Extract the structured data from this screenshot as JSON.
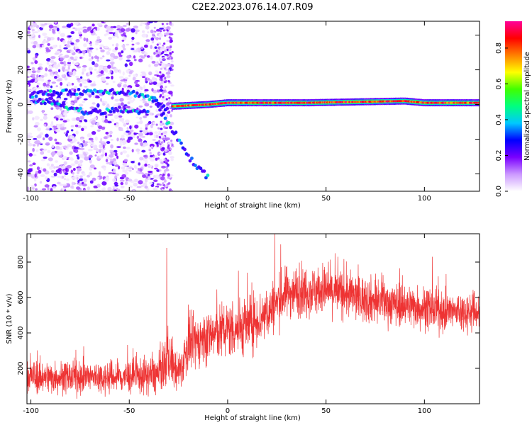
{
  "figure_title": "C2E2.2023.076.14.07.R09",
  "chart_data": [
    {
      "type": "heatmap",
      "title": "",
      "xlabel": "Height of straight line (km)",
      "ylabel": "Frequency (Hz)",
      "xlim": [
        -102,
        128
      ],
      "ylim": [
        -50,
        48
      ],
      "xticks": [
        -100,
        -50,
        0,
        50,
        100
      ],
      "yticks": [
        -40,
        -20,
        0,
        20,
        40
      ],
      "colorbar": {
        "label": "Normalized spectral amplitude",
        "range": [
          0.0,
          0.95
        ],
        "ticks": [
          0.0,
          0.2,
          0.4,
          0.6,
          0.8
        ],
        "tick_labels": [
          "0.0",
          "0.2",
          "0.4",
          "0.6",
          "0.8"
        ],
        "colors": [
          "#ffffff",
          "#cc99ff",
          "#7a00ff",
          "#0000ff",
          "#00c8ff",
          "#00ff80",
          "#40ff00",
          "#ffff00",
          "#ff8000",
          "#ff0000",
          "#ff0099"
        ]
      },
      "features": [
        {
          "name": "scattered noise",
          "x_range": [
            -102,
            -28
          ],
          "y_range": [
            -50,
            48
          ],
          "amplitude": [
            0.02,
            0.25
          ]
        },
        {
          "name": "upper chirp track",
          "points": [
            [
              -100,
              6
            ],
            [
              -80,
              7
            ],
            [
              -60,
              8
            ],
            [
              -45,
              6
            ],
            [
              -38,
              3
            ],
            [
              -30,
              -4
            ]
          ]
        },
        {
          "name": "middle track",
          "points": [
            [
              -100,
              3
            ],
            [
              -85,
              0
            ],
            [
              -70,
              -5
            ],
            [
              -55,
              -3
            ],
            [
              -40,
              -5
            ]
          ]
        },
        {
          "name": "descending branch",
          "points": [
            [
              -38,
              5
            ],
            [
              -32,
              -8
            ],
            [
              -26,
              -18
            ],
            [
              -20,
              -30
            ],
            [
              -10,
              -42
            ]
          ]
        },
        {
          "name": "carrier line",
          "points": [
            [
              -28,
              -1
            ],
            [
              -10,
              0
            ],
            [
              0,
              1
            ],
            [
              40,
              1
            ],
            [
              90,
              2
            ],
            [
              100,
              1
            ],
            [
              128,
              1
            ]
          ],
          "amplitude": [
            0.7,
            0.95
          ]
        }
      ]
    },
    {
      "type": "line",
      "title": "",
      "xlabel": "Height of straight line (km)",
      "ylabel": "SNR (10 * v/v)",
      "xlim": [
        -102,
        128
      ],
      "ylim": [
        0,
        960
      ],
      "xticks": [
        -100,
        -50,
        0,
        50,
        100
      ],
      "yticks": [
        200,
        400,
        600,
        800
      ],
      "series": [
        {
          "name": "SNR",
          "color": "#ee3333",
          "baseline_x": [
            -102,
            -80,
            -60,
            -45,
            -35,
            -30,
            -25,
            -20,
            -10,
            0,
            10,
            20,
            30,
            40,
            50,
            60,
            70,
            80,
            90,
            100,
            110,
            120,
            128
          ],
          "baseline_y": [
            150,
            150,
            150,
            155,
            165,
            270,
            160,
            330,
            380,
            420,
            440,
            510,
            630,
            640,
            640,
            620,
            590,
            570,
            560,
            540,
            520,
            520,
            520
          ],
          "noise_amplitude": [
            90,
            90,
            90,
            100,
            110,
            160,
            100,
            140,
            150,
            160,
            160,
            150,
            140,
            140,
            130,
            130,
            130,
            120,
            120,
            120,
            110,
            110,
            110
          ],
          "peaks": [
            [
              -31,
              880
            ],
            [
              24,
              960
            ],
            [
              27,
              900
            ],
            [
              56,
              830
            ],
            [
              104,
              830
            ],
            [
              10,
              740
            ],
            [
              -20,
              560
            ]
          ]
        }
      ]
    }
  ]
}
